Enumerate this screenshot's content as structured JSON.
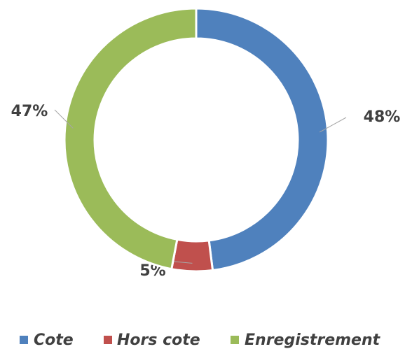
{
  "chart_data": {
    "type": "donut",
    "categories": [
      "Cote",
      "Hors cote",
      "Enregistrement"
    ],
    "values": [
      48,
      5,
      47
    ],
    "value_labels": [
      "48%",
      "5%",
      "47%"
    ],
    "colors": [
      "#4f81bd",
      "#c0504d",
      "#9bbb59"
    ],
    "legend": "bottom"
  }
}
